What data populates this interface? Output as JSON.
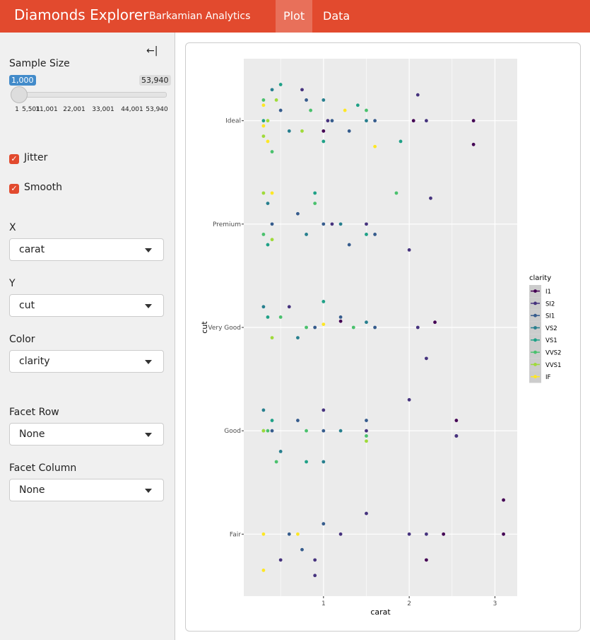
{
  "header": {
    "title": "Diamonds Explorer",
    "subtitle": "Barkamian Analytics",
    "tabs": [
      "Plot",
      "Data"
    ]
  },
  "sidebar": {
    "collapse": "←|",
    "slider": {
      "label": "Sample Size",
      "value": "1,000",
      "max": "53,940",
      "ticks": [
        "1",
        "5,501",
        "11,001",
        "22,001",
        "33,001",
        "44,001",
        "53,940"
      ]
    },
    "checkboxes": [
      "Jitter",
      "Smooth"
    ],
    "selects": [
      {
        "label": "X",
        "value": "carat"
      },
      {
        "label": "Y",
        "value": "cut"
      },
      {
        "label": "Color",
        "value": "clarity"
      },
      {
        "label": "Facet Row",
        "value": "None"
      },
      {
        "label": "Facet Column",
        "value": "None"
      }
    ]
  },
  "chart_data": {
    "type": "scatter",
    "x_label": "carat",
    "y_label": "cut",
    "legend_title": "clarity",
    "xlim": [
      0.07,
      3.26
    ],
    "xticks": [
      1,
      2,
      3
    ],
    "xminor": [
      0.5,
      1.5,
      2.5
    ],
    "ylim": [
      0.4,
      5.6
    ],
    "yticks": [
      {
        "value": 1,
        "label": "Fair"
      },
      {
        "value": 2,
        "label": "Good"
      },
      {
        "value": 3,
        "label": "Very Good"
      },
      {
        "value": 4,
        "label": "Premium"
      },
      {
        "value": 5,
        "label": "Ideal"
      }
    ],
    "grid": true,
    "legend": "right",
    "series": [
      {
        "name": "I1",
        "color": "#440154",
        "x": [
          2.75,
          2.75,
          3.1,
          3.1,
          2.2,
          2.05,
          2.4,
          2.55,
          2.55,
          2.3,
          1.0,
          1.2
        ],
        "y": [
          5.0,
          4.77,
          1.33,
          1.0,
          0.75,
          5.0,
          1.0,
          2.1,
          1.95,
          3.05,
          4.9,
          3.06
        ]
      },
      {
        "name": "SI2",
        "color": "#46337E",
        "x": [
          0.75,
          1.05,
          2.1,
          2.2,
          1.1,
          1.5,
          2.25,
          2.0,
          2.1,
          2.2,
          0.6,
          1.0,
          1.5,
          2.0,
          0.5,
          0.9,
          1.2,
          1.5,
          2.2,
          0.9,
          2.0,
          2.55
        ],
        "y": [
          5.3,
          5.0,
          5.25,
          5.0,
          4.0,
          4.0,
          4.25,
          3.75,
          3.0,
          2.7,
          3.2,
          2.2,
          2.0,
          1.0,
          0.75,
          0.75,
          1.0,
          1.2,
          1.0,
          0.6,
          2.3,
          1.95
        ]
      },
      {
        "name": "SI1",
        "color": "#365C8D",
        "x": [
          0.5,
          0.8,
          1.1,
          1.3,
          1.6,
          0.4,
          0.7,
          1.0,
          1.3,
          1.6,
          0.9,
          1.2,
          1.6,
          0.4,
          0.7,
          1.0,
          1.5,
          0.6,
          1.0,
          0.75
        ],
        "y": [
          5.1,
          5.2,
          5.0,
          4.9,
          5.0,
          4.0,
          4.1,
          4.0,
          3.8,
          3.9,
          3.0,
          3.1,
          3.0,
          2.0,
          2.1,
          2.0,
          2.1,
          1.0,
          1.1,
          0.85
        ]
      },
      {
        "name": "VS2",
        "color": "#277F8E",
        "x": [
          0.4,
          0.6,
          1.0,
          1.5,
          0.35,
          0.8,
          1.2,
          0.3,
          0.7,
          1.5,
          0.3,
          0.5,
          1.0,
          1.2
        ],
        "y": [
          5.3,
          4.9,
          5.2,
          5.0,
          4.2,
          3.9,
          4.0,
          3.2,
          2.9,
          3.05,
          2.2,
          1.8,
          1.7,
          2.0
        ]
      },
      {
        "name": "VS1",
        "color": "#1FA187",
        "x": [
          0.3,
          0.5,
          1.0,
          1.4,
          1.9,
          0.35,
          0.9,
          1.5,
          0.35,
          1.0,
          0.3,
          0.8,
          0.4
        ],
        "y": [
          5.0,
          5.35,
          4.8,
          5.15,
          4.8,
          3.8,
          4.3,
          3.9,
          3.1,
          3.25,
          2.0,
          1.7,
          2.1
        ]
      },
      {
        "name": "VVS2",
        "color": "#4AC16D",
        "x": [
          0.3,
          0.4,
          0.85,
          1.5,
          0.3,
          0.9,
          1.85,
          0.5,
          0.8,
          1.35,
          0.35,
          0.45,
          0.8,
          1.5
        ],
        "y": [
          5.2,
          4.7,
          5.1,
          5.1,
          3.9,
          4.2,
          4.3,
          3.1,
          3.0,
          3.0,
          2.0,
          1.7,
          2.0,
          1.95
        ]
      },
      {
        "name": "VVS1",
        "color": "#9FDA3A",
        "x": [
          0.3,
          0.35,
          0.45,
          0.75,
          0.3,
          0.4,
          0.4,
          0.3,
          1.5
        ],
        "y": [
          4.85,
          5.0,
          5.2,
          4.9,
          4.3,
          3.85,
          2.9,
          2.0,
          1.9
        ]
      },
      {
        "name": "IF",
        "color": "#FDE725",
        "x": [
          0.3,
          0.3,
          0.35,
          1.25,
          1.6,
          0.4,
          1.0,
          0.3,
          0.3,
          0.7
        ],
        "y": [
          5.15,
          4.95,
          4.8,
          5.1,
          4.75,
          4.3,
          3.03,
          1.0,
          0.65,
          1.0
        ]
      }
    ]
  }
}
